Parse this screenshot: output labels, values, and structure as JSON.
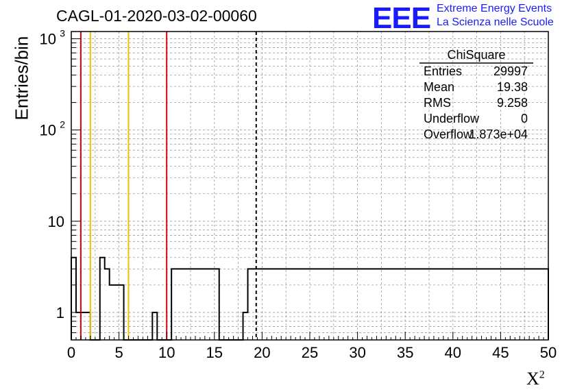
{
  "header": {
    "title": "CAGL-01-2020-03-02-00060",
    "logo_text": "EEE",
    "logo_line1": "Extreme Energy Events",
    "logo_line2": "La Scienza nelle Scuole",
    "brand_color": "#1a1aff"
  },
  "stats": {
    "name": "ChiSquare",
    "rows": [
      {
        "label": "Entries",
        "value": "29997"
      },
      {
        "label": "Mean",
        "value": "19.38"
      },
      {
        "label": "RMS",
        "value": "9.258"
      },
      {
        "label": "Underflow",
        "value": "0"
      },
      {
        "label": "Overflow",
        "value": "1.873e+04"
      }
    ]
  },
  "chart_data": {
    "type": "bar",
    "title": "CAGL-01-2020-03-02-00060",
    "xlabel": "X",
    "xlabel_sup": "2",
    "ylabel": "Entries/bin",
    "xlim": [
      0,
      50
    ],
    "ylim": [
      0.5,
      1200
    ],
    "y_scale": "log",
    "bin_width": 0.5,
    "grid": true,
    "x_ticks": [
      "0",
      "5",
      "10",
      "15",
      "20",
      "25",
      "30",
      "35",
      "40",
      "45",
      "50"
    ],
    "y_ticks": [
      {
        "value": 1,
        "label": "1"
      },
      {
        "value": 10,
        "label": "10"
      },
      {
        "value": 100,
        "label": "10",
        "sup": "2"
      },
      {
        "value": 1000,
        "label": "10",
        "sup": "3"
      }
    ],
    "values": [
      4,
      1,
      1,
      1,
      0,
      0,
      4,
      3,
      2,
      2,
      2,
      0,
      0,
      0,
      0,
      0,
      0,
      1,
      0,
      0,
      0,
      3,
      3,
      3,
      3,
      3,
      3,
      3,
      3,
      3,
      3,
      0,
      0,
      0,
      0,
      0,
      1,
      3,
      3,
      3,
      3,
      3,
      3,
      3,
      3,
      3,
      3,
      3,
      3,
      3,
      3,
      3,
      3,
      3,
      3,
      3,
      3,
      3,
      3,
      3,
      3,
      3,
      3,
      3,
      3,
      3,
      3,
      3,
      3,
      3,
      3,
      3,
      3,
      3,
      3,
      3,
      3,
      3,
      3,
      3,
      3,
      3,
      3,
      3,
      3,
      3,
      3,
      3,
      3,
      3,
      3,
      3,
      3,
      3,
      3,
      3,
      3,
      3,
      3,
      3
    ],
    "vlines": [
      {
        "x": 1,
        "color": "#e00000",
        "style": "solid"
      },
      {
        "x": 2,
        "color": "#f2c000",
        "style": "solid"
      },
      {
        "x": 6,
        "color": "#f2c000",
        "style": "solid"
      },
      {
        "x": 10,
        "color": "#e00000",
        "style": "solid"
      },
      {
        "x": 19.38,
        "color": "#000000",
        "style": "dashed"
      }
    ]
  }
}
